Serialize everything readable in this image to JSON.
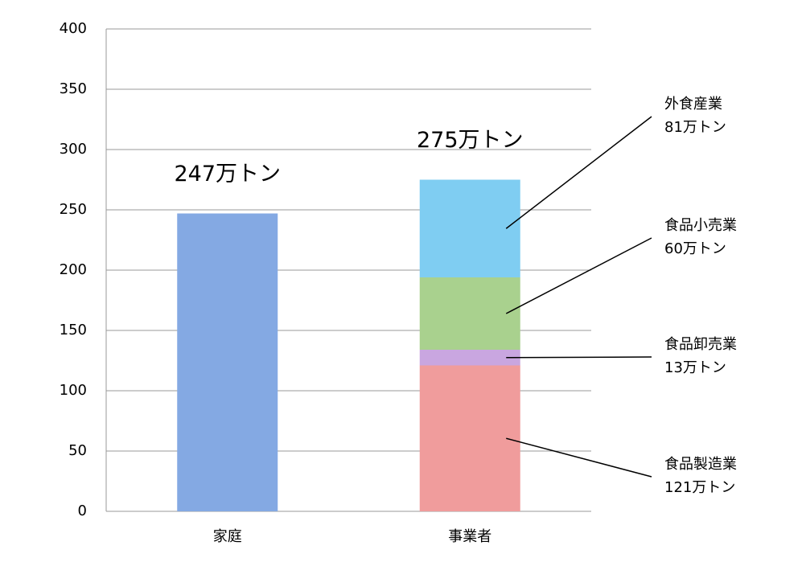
{
  "chart_data": {
    "type": "stacked_bar",
    "categories": [
      "家庭",
      "事業者"
    ],
    "series": [
      {
        "color": "#84a9e3",
        "values": [
          247,
          null
        ]
      },
      {
        "name": "食品製造業",
        "color": "#f09c9c",
        "values": [
          null,
          121
        ],
        "value_labels": [
          null,
          "121万トン"
        ]
      },
      {
        "name": "食品卸売業",
        "color": "#c9a6e0",
        "values": [
          null,
          13
        ],
        "value_labels": [
          null,
          "13万トン"
        ]
      },
      {
        "name": "食品小売業",
        "color": "#a9d18e",
        "values": [
          null,
          60
        ],
        "value_labels": [
          null,
          "60万トン"
        ]
      },
      {
        "name": "外食産業",
        "color": "#7fcdf2",
        "values": [
          null,
          81
        ],
        "value_labels": [
          null,
          "81万トン"
        ]
      }
    ],
    "totals": [
      247,
      275
    ],
    "total_labels": [
      "247万トン",
      "275万トン"
    ],
    "ylim": [
      0,
      400
    ],
    "yticks": [
      0,
      50,
      100,
      150,
      200,
      250,
      300,
      350,
      400
    ],
    "grid": true
  }
}
